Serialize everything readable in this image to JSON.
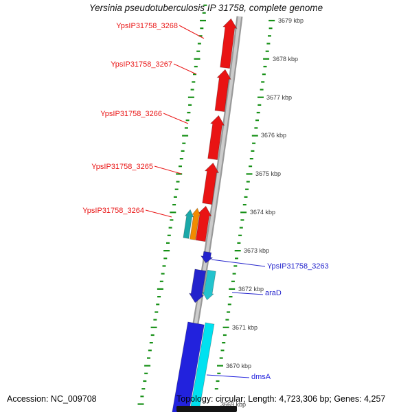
{
  "title": "Yersinia pseudotuberculosis IP 31758, complete genome",
  "status_bar": {
    "accession": "Accession: NC_009708",
    "summary": "Topology: circular; Length: 4,723,306 bp; Genes: 4,257"
  },
  "ruler": {
    "unit": "kbp",
    "tick_color": "#169016",
    "labels": [
      "3679 kbp",
      "3678 kbp",
      "3677 kbp",
      "3676 kbp",
      "3675 kbp",
      "3674 kbp",
      "3673 kbp",
      "3672 kbp",
      "3671 kbp",
      "3670 kbp",
      "3669 kbp"
    ]
  },
  "backbone": {
    "edge_color": "#9a9a9a",
    "center_color": "#cccccc"
  },
  "genes": [
    {
      "label": "YpsIP31758_3268",
      "color": "#e91414",
      "strand": "forward"
    },
    {
      "label": "YpsIP31758_3267",
      "color": "#e91414",
      "strand": "forward"
    },
    {
      "label": "YpsIP31758_3266",
      "color": "#e91414",
      "strand": "forward"
    },
    {
      "label": "YpsIP31758_3265",
      "color": "#e91414",
      "strand": "forward"
    },
    {
      "label": "YpsIP31758_3264",
      "color": "#e91414",
      "strand": "forward"
    },
    {
      "label": "",
      "color": "#f28b00",
      "strand": "forward"
    },
    {
      "label": "",
      "color": "#1ba8a8",
      "strand": "forward"
    },
    {
      "label": "YpsIP31758_3263",
      "color": "#2323cc",
      "strand": "reverse"
    },
    {
      "label": "araD",
      "color": "#2323cc",
      "strand": "reverse"
    },
    {
      "label": "",
      "color": "#23c3cd",
      "strand": "reverse"
    },
    {
      "label": "dmsA",
      "color": "#2222dd",
      "strand": "reverse"
    },
    {
      "label": "",
      "color": "#00e1f0",
      "strand": "reverse"
    }
  ]
}
